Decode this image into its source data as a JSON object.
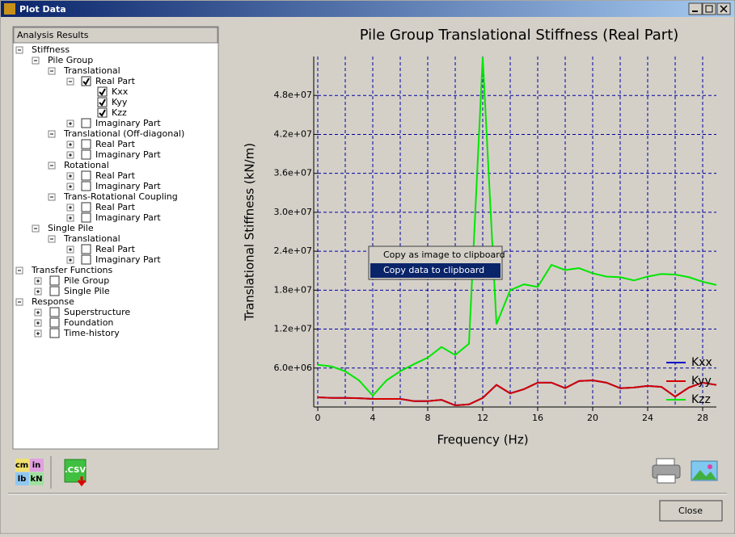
{
  "window": {
    "title": "Plot Data"
  },
  "tree": {
    "header": "Analysis Results",
    "items": [
      {
        "label": "Stiffness",
        "level": 0,
        "expanded": true
      },
      {
        "label": "Pile Group",
        "level": 1,
        "expanded": true
      },
      {
        "label": "Translational",
        "level": 2,
        "expanded": true
      },
      {
        "label": "Real Part",
        "level": 3,
        "expanded": true,
        "checked": true
      },
      {
        "label": "Kxx",
        "level": 4,
        "checked": true
      },
      {
        "label": "Kyy",
        "level": 4,
        "checked": true
      },
      {
        "label": "Kzz",
        "level": 4,
        "checked": true
      },
      {
        "label": "Imaginary Part",
        "level": 3,
        "expanded": false,
        "checked": false
      },
      {
        "label": "Translational (Off-diagonal)",
        "level": 2,
        "expanded": true
      },
      {
        "label": "Real Part",
        "level": 3,
        "expanded": false,
        "checked": false
      },
      {
        "label": "Imaginary Part",
        "level": 3,
        "expanded": false,
        "checked": false
      },
      {
        "label": "Rotational",
        "level": 2,
        "expanded": true
      },
      {
        "label": "Real Part",
        "level": 3,
        "expanded": false,
        "checked": false
      },
      {
        "label": "Imaginary Part",
        "level": 3,
        "expanded": false,
        "checked": false
      },
      {
        "label": "Trans-Rotational Coupling",
        "level": 2,
        "expanded": true
      },
      {
        "label": "Real Part",
        "level": 3,
        "expanded": false,
        "checked": false
      },
      {
        "label": "Imaginary Part",
        "level": 3,
        "expanded": false,
        "checked": false
      },
      {
        "label": "Single Pile",
        "level": 1,
        "expanded": true
      },
      {
        "label": "Translational",
        "level": 2,
        "expanded": true
      },
      {
        "label": "Real Part",
        "level": 3,
        "expanded": false,
        "checked": false
      },
      {
        "label": "Imaginary Part",
        "level": 3,
        "expanded": false,
        "checked": false
      },
      {
        "label": "Transfer Functions",
        "level": 0,
        "expanded": true
      },
      {
        "label": "Pile Group",
        "level": 1,
        "expanded": false,
        "checked": false
      },
      {
        "label": "Single Pile",
        "level": 1,
        "expanded": false,
        "checked": false
      },
      {
        "label": "Response",
        "level": 0,
        "expanded": true
      },
      {
        "label": "Superstructure",
        "level": 1,
        "expanded": false,
        "checked": false
      },
      {
        "label": "Foundation",
        "level": 1,
        "expanded": false,
        "checked": false
      },
      {
        "label": "Time-history",
        "level": 1,
        "expanded": false,
        "checked": false
      }
    ]
  },
  "toolbar": {
    "units": [
      "cm",
      "in",
      "lb",
      "kN"
    ],
    "csv": ".CSV"
  },
  "context_menu": {
    "items": [
      "Copy as image to clipboard",
      "Copy data to clipboard"
    ],
    "selected": 1
  },
  "buttons": {
    "close": "Close"
  },
  "chart_data": {
    "type": "line",
    "title": "Pile Group Translational Stiffness (Real Part)",
    "x_label": "Frequency (Hz)",
    "y_label": "Translational Stiffness (kN/m)",
    "x": [
      0,
      1,
      2,
      3,
      4,
      5,
      6,
      7,
      8,
      9,
      10,
      11,
      12,
      13,
      14,
      15,
      16,
      17,
      18,
      19,
      20,
      21,
      22,
      23,
      24,
      25,
      26,
      27,
      28,
      29
    ],
    "series": [
      {
        "name": "Kxx",
        "color": "#0000c8",
        "values": [
          1500000,
          1400000,
          1400000,
          1350000,
          1250000,
          1250000,
          1250000,
          900000,
          900000,
          1100000,
          250000,
          400000,
          1400000,
          3400000,
          2100000,
          2750000,
          3750000,
          3750000,
          2900000,
          4000000,
          4100000,
          3750000,
          2900000,
          3000000,
          3250000,
          3100000,
          1600000,
          3000000,
          3750000,
          3400000
        ]
      },
      {
        "name": "Kyy",
        "color": "#d40000",
        "values": [
          1500000,
          1400000,
          1400000,
          1350000,
          1250000,
          1250000,
          1250000,
          900000,
          900000,
          1100000,
          250000,
          400000,
          1400000,
          3400000,
          2100000,
          2750000,
          3750000,
          3750000,
          2900000,
          4000000,
          4100000,
          3750000,
          2900000,
          3000000,
          3250000,
          3100000,
          1600000,
          3000000,
          3750000,
          3400000
        ]
      },
      {
        "name": "Kzz",
        "color": "#00e600",
        "values": [
          6500000,
          6250000,
          5500000,
          4100000,
          1750000,
          4100000,
          5500000,
          6600000,
          7600000,
          9250000,
          8000000,
          9750000,
          53900000,
          12750000,
          18000000,
          18900000,
          18500000,
          21900000,
          21100000,
          21400000,
          20600000,
          20100000,
          20000000,
          19500000,
          20100000,
          20500000,
          20400000,
          20000000,
          19300000,
          18800000
        ]
      }
    ],
    "xlim": [
      0,
      29
    ],
    "xticks": [
      0,
      4,
      8,
      12,
      16,
      20,
      24,
      28
    ],
    "x_minor_grid": [
      2,
      6,
      10,
      14,
      18,
      22,
      26
    ],
    "ylim": [
      0,
      54000000
    ],
    "yticks": [
      {
        "value": 6000000,
        "label": "6.0e+06"
      },
      {
        "value": 12000000,
        "label": "1.2e+07"
      },
      {
        "value": 18000000,
        "label": "1.8e+07"
      },
      {
        "value": 24000000,
        "label": "2.4e+07"
      },
      {
        "value": 30000000,
        "label": "3.0e+07"
      },
      {
        "value": 36000000,
        "label": "3.6e+07"
      },
      {
        "value": 42000000,
        "label": "4.2e+07"
      },
      {
        "value": 48000000,
        "label": "4.8e+07"
      }
    ],
    "grid": true,
    "legend": "lower right"
  }
}
